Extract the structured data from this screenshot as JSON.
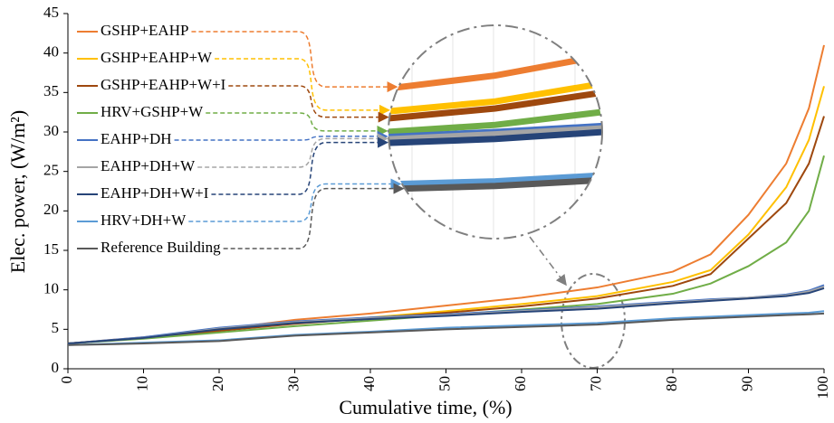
{
  "chart_data": {
    "type": "line",
    "xlabel": "Cumulative time, (%)",
    "ylabel": "Elec. power, (W/m²)",
    "x": [
      0,
      10,
      20,
      30,
      40,
      50,
      60,
      70,
      80,
      85,
      90,
      95,
      98,
      100
    ],
    "series": [
      {
        "name": "GSHP+EAHP",
        "color": "#ed7d31",
        "values": [
          3.2,
          4,
          5,
          6.2,
          7,
          8,
          9,
          10.3,
          12.3,
          14.5,
          19.5,
          26,
          33,
          41
        ]
      },
      {
        "name": "GSHP+EAHP+W",
        "color": "#ffc000",
        "values": [
          3.2,
          3.9,
          4.9,
          5.8,
          6.5,
          7.3,
          8.2,
          9.2,
          11,
          12.5,
          17,
          23,
          29,
          35.8
        ]
      },
      {
        "name": "GSHP+EAHP+W+I",
        "color": "#9e480e",
        "values": [
          3.2,
          3.9,
          4.8,
          5.7,
          6.4,
          7.1,
          7.9,
          8.9,
          10.5,
          12,
          16.5,
          21,
          26,
          32
        ]
      },
      {
        "name": "HRV+GSHP+W",
        "color": "#70ad47",
        "values": [
          3.2,
          3.8,
          4.6,
          5.4,
          6.1,
          6.8,
          7.5,
          8.2,
          9.5,
          10.8,
          13,
          16,
          20,
          27
        ]
      },
      {
        "name": "EAHP+DH",
        "color": "#4472c4",
        "values": [
          3.2,
          4,
          5.2,
          6,
          6.5,
          6.9,
          7.4,
          7.9,
          8.5,
          8.8,
          9,
          9.4,
          9.9,
          10.6
        ]
      },
      {
        "name": "EAHP+DH+W",
        "color": "#a5a5a5",
        "values": [
          3.2,
          3.9,
          5.1,
          5.9,
          6.4,
          6.8,
          7.3,
          7.8,
          8.4,
          8.7,
          9,
          9.3,
          9.8,
          10.4
        ]
      },
      {
        "name": "EAHP+DH+W+I",
        "color": "#264478",
        "values": [
          3.2,
          3.9,
          5,
          5.8,
          6.3,
          6.7,
          7.2,
          7.6,
          8.3,
          8.6,
          8.9,
          9.2,
          9.6,
          10.2
        ]
      },
      {
        "name": "HRV+DH+W",
        "color": "#5b9bd5",
        "values": [
          3,
          3.3,
          3.6,
          4.3,
          4.7,
          5.2,
          5.5,
          5.8,
          6.4,
          6.6,
          6.8,
          7,
          7.1,
          7.3
        ]
      },
      {
        "name": "Reference Building",
        "color": "#595959",
        "values": [
          3,
          3.2,
          3.5,
          4.2,
          4.6,
          5,
          5.3,
          5.6,
          6.2,
          6.4,
          6.6,
          6.8,
          6.9,
          7
        ]
      }
    ],
    "xlim": [
      0,
      100
    ],
    "xticks": [
      0,
      10,
      20,
      30,
      40,
      50,
      60,
      70,
      80,
      90,
      100
    ],
    "ylim": [
      0,
      45
    ],
    "yticks": [
      0,
      5,
      10,
      15,
      20,
      25,
      30,
      35,
      40,
      45
    ]
  }
}
